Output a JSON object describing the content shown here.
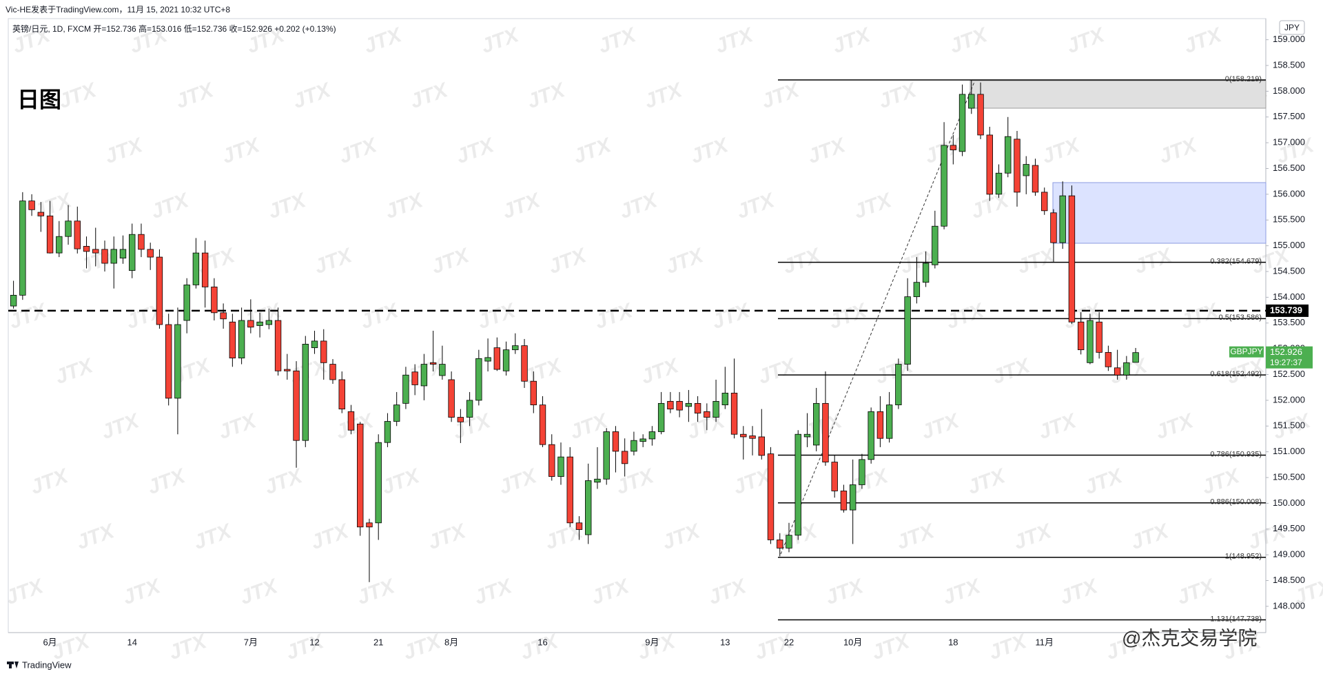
{
  "header": {
    "byline": "Vic-HE发表于TradingView.com，11月 15, 2021 10:32 UTC+8",
    "symbol_line": "英镑/日元, 1D, FXCM  开=152.736  高=153.016  低=152.736  收=152.926  +0.202 (+0.13%)"
  },
  "chart_data": {
    "type": "candlestick",
    "title": "日图",
    "categories": [
      null,
      null,
      null,
      null,
      "6月",
      null,
      null,
      null,
      null,
      null,
      null,
      null,
      null,
      "14",
      null,
      null,
      null,
      null,
      null,
      null,
      null,
      null,
      null,
      null,
      null,
      null,
      "7月",
      null,
      null,
      null,
      null,
      null,
      null,
      "12",
      null,
      null,
      null,
      null,
      null,
      null,
      "21",
      null,
      null,
      null,
      null,
      null,
      null,
      null,
      "8月",
      null,
      null,
      null,
      null,
      null,
      null,
      null,
      null,
      null,
      "16",
      null,
      null,
      null,
      null,
      null,
      null,
      null,
      null,
      null,
      null,
      null,
      "9月",
      null,
      null,
      null,
      null,
      null,
      null,
      null,
      "13",
      null,
      null,
      null,
      null,
      null,
      null,
      "22",
      null,
      null,
      null,
      null,
      null,
      null,
      "10月",
      null,
      null,
      null,
      null,
      null,
      null,
      null,
      null,
      null,
      null,
      "18",
      null,
      null,
      null,
      null,
      null,
      null,
      null,
      null,
      null,
      "11月",
      null,
      null,
      null,
      null,
      null,
      null,
      null,
      null,
      null,
      null
    ],
    "open": [
      153.83,
      154.04,
      155.87,
      155.65,
      155.58,
      154.86,
      155.18,
      155.48,
      154.99,
      154.93,
      154.93,
      154.66,
      154.76,
      154.52,
      155.22,
      154.93,
      154.78,
      153.47,
      152.04,
      153.55,
      154.24,
      154.86,
      154.2,
      153.7,
      153.52,
      152.82,
      153.55,
      153.45,
      153.47,
      153.55,
      152.6,
      152.57,
      151.22,
      153.02,
      153.15,
      152.7,
      152.4,
      151.78,
      151.54,
      149.62,
      149.62,
      151.18,
      151.59,
      151.94,
      152.55,
      152.28,
      152.73,
      152.48,
      152.4,
      151.67,
      151.67,
      152.0,
      152.76,
      153.02,
      152.57,
      152.98,
      153.06,
      152.37,
      151.91,
      151.14,
      150.52,
      150.9,
      149.62,
      149.39,
      150.41,
      150.47,
      151.39,
      151.01,
      151.01,
      151.2,
      151.25,
      151.39,
      151.98,
      151.98,
      151.88,
      151.94,
      151.78,
      151.67,
      151.91,
      152.14,
      151.34,
      151.31,
      151.29,
      150.96,
      149.29,
      149.13,
      149.38,
      151.29,
      151.13,
      151.94,
      150.8,
      150.24,
      149.87,
      150.36,
      150.85,
      151.78,
      151.26,
      151.91,
      152.7,
      154.01,
      154.29,
      154.63,
      155.38,
      156.95,
      156.83,
      157.67,
      157.94,
      157.15,
      156.0,
      156.41,
      157.07,
      156.36,
      156.56,
      156.04,
      155.64,
      155.06,
      155.97,
      153.52,
      152.73,
      153.52,
      152.93,
      152.63,
      152.49,
      152.736
    ],
    "high": [
      154.32,
      156.04,
      156.0,
      155.85,
      155.87,
      155.48,
      155.79,
      155.76,
      155.18,
      155.35,
      155.1,
      155.18,
      155.2,
      155.43,
      155.43,
      155.06,
      154.93,
      153.68,
      153.8,
      154.37,
      155.15,
      155.1,
      154.37,
      153.88,
      153.68,
      153.8,
      153.96,
      153.7,
      153.78,
      153.8,
      152.9,
      152.76,
      153.25,
      153.35,
      153.38,
      152.8,
      152.56,
      151.91,
      151.58,
      149.7,
      151.34,
      151.75,
      152.16,
      152.65,
      152.7,
      152.9,
      153.35,
      153.06,
      152.56,
      151.83,
      152.16,
      152.98,
      153.2,
      153.22,
      153.14,
      153.3,
      153.19,
      152.56,
      152.08,
      151.34,
      151.18,
      151.09,
      149.75,
      150.77,
      151.09,
      151.46,
      151.5,
      151.26,
      151.39,
      151.34,
      151.5,
      152.16,
      152.16,
      152.16,
      152.2,
      152.08,
      151.94,
      152.4,
      152.65,
      152.81,
      151.5,
      151.5,
      151.83,
      151.09,
      149.42,
      149.62,
      151.42,
      151.75,
      152.24,
      152.56,
      150.93,
      150.36,
      150.85,
      150.96,
      151.86,
      152.08,
      152.16,
      152.81,
      154.37,
      154.78,
      154.89,
      155.68,
      157.4,
      157.15,
      158.13,
      158.21,
      158.17,
      157.31,
      156.58,
      157.5,
      157.23,
      156.74,
      156.69,
      156.13,
      155.71,
      156.25,
      156.17,
      153.71,
      153.68,
      153.71,
      153.06,
      152.98,
      152.86,
      153.016
    ],
    "low": [
      153.78,
      153.95,
      155.58,
      155.27,
      154.85,
      154.78,
      155.02,
      154.85,
      154.56,
      154.6,
      154.5,
      154.17,
      154.65,
      154.37,
      154.78,
      154.53,
      153.39,
      151.9,
      151.34,
      153.3,
      154.17,
      153.8,
      153.55,
      153.39,
      152.65,
      152.7,
      153.3,
      153.22,
      153.38,
      152.48,
      152.4,
      150.69,
      151.09,
      152.9,
      152.4,
      152.32,
      151.75,
      151.34,
      149.37,
      148.47,
      149.29,
      151.09,
      151.5,
      151.83,
      152.1,
      152.0,
      152.56,
      152.4,
      151.58,
      151.17,
      151.5,
      151.9,
      152.56,
      152.57,
      152.48,
      152.9,
      152.24,
      151.75,
      151.09,
      150.44,
      150.36,
      149.54,
      149.29,
      149.21,
      150.28,
      150.36,
      150.6,
      150.52,
      150.93,
      151.09,
      151.12,
      151.34,
      151.75,
      151.67,
      151.58,
      151.58,
      151.42,
      151.58,
      151.83,
      151.26,
      150.85,
      150.93,
      150.85,
      149.21,
      148.97,
      149.05,
      149.29,
      151.09,
      151.01,
      150.73,
      150.11,
      149.82,
      149.21,
      150.28,
      150.77,
      151.09,
      151.18,
      151.83,
      152.57,
      153.88,
      154.2,
      154.56,
      155.32,
      156.58,
      156.74,
      157.56,
      157.07,
      155.87,
      155.93,
      156.33,
      155.76,
      156.0,
      155.97,
      155.6,
      154.69,
      154.94,
      153.48,
      152.89,
      152.7,
      152.81,
      152.57,
      152.4,
      152.4,
      152.736
    ],
    "close": [
      154.04,
      155.87,
      155.7,
      155.58,
      154.86,
      155.18,
      155.48,
      154.94,
      154.89,
      154.86,
      154.66,
      154.93,
      154.93,
      155.22,
      154.93,
      154.78,
      153.47,
      152.04,
      153.47,
      154.24,
      154.86,
      154.2,
      153.7,
      153.58,
      152.82,
      153.55,
      153.42,
      153.52,
      153.55,
      152.57,
      152.57,
      151.22,
      153.09,
      153.15,
      152.73,
      152.4,
      151.83,
      151.42,
      149.54,
      149.54,
      151.18,
      151.59,
      151.91,
      152.49,
      152.3,
      152.7,
      152.7,
      152.7,
      151.67,
      151.58,
      152.0,
      152.81,
      152.83,
      152.6,
      152.98,
      153.06,
      152.37,
      151.91,
      151.14,
      150.52,
      150.9,
      149.62,
      149.49,
      150.44,
      150.47,
      151.39,
      151.01,
      150.77,
      151.22,
      151.25,
      151.39,
      151.94,
      151.83,
      151.81,
      151.94,
      151.75,
      151.67,
      151.98,
      152.14,
      151.34,
      151.29,
      151.26,
      150.93,
      149.29,
      149.13,
      149.38,
      151.34,
      151.34,
      151.94,
      150.8,
      150.24,
      149.87,
      150.36,
      150.85,
      151.78,
      151.26,
      151.91,
      152.7,
      154.01,
      154.29,
      154.66,
      155.38,
      156.95,
      156.86,
      157.94,
      157.94,
      157.15,
      156.0,
      156.41,
      157.12,
      156.04,
      156.58,
      156.04,
      155.68,
      155.06,
      155.97,
      153.52,
      152.98,
      153.55,
      152.93,
      152.65,
      152.49,
      152.73,
      152.926
    ],
    "up_color": "#4caf50",
    "down_color": "#f44336",
    "ylim": [
      147.49,
      159.41
    ],
    "yticks": [
      {
        "value": 148,
        "label": "148.000"
      },
      {
        "value": 148.5,
        "label": "148.500"
      },
      {
        "value": 149,
        "label": "149.000"
      },
      {
        "value": 149.5,
        "label": "149.500"
      },
      {
        "value": 150,
        "label": "150.000"
      },
      {
        "value": 150.5,
        "label": "150.500"
      },
      {
        "value": 151,
        "label": "151.000"
      },
      {
        "value": 151.5,
        "label": "151.500"
      },
      {
        "value": 152,
        "label": "152.000"
      },
      {
        "value": 152.5,
        "label": "152.500"
      },
      {
        "value": 153,
        "label": "153.000"
      },
      {
        "value": 153.5,
        "label": "153.500"
      },
      {
        "value": 154,
        "label": "154.000"
      },
      {
        "value": 154.5,
        "label": "154.500"
      },
      {
        "value": 155,
        "label": "155.000"
      },
      {
        "value": 155.5,
        "label": "155.500"
      },
      {
        "value": 156,
        "label": "156.000"
      },
      {
        "value": 156.5,
        "label": "156.500"
      },
      {
        "value": 157,
        "label": "157.000"
      },
      {
        "value": 157.5,
        "label": "157.500"
      },
      {
        "value": 158,
        "label": "158.000"
      },
      {
        "value": 158.5,
        "label": "158.500"
      },
      {
        "value": 159,
        "label": "159.000"
      }
    ],
    "grid": false,
    "currency": "JPY",
    "dashed_level": 153.739,
    "last_price": 152.926,
    "countdown": "19:27:37",
    "symbol": "GBPJPY",
    "fib_levels": [
      {
        "value": 158.219,
        "label": "0(158.219)"
      },
      {
        "value": 154.679,
        "label": "0.382(154.679)"
      },
      {
        "value": 153.586,
        "label": "0.5(153.586)"
      },
      {
        "value": 152.492,
        "label": "0.618(152.492)"
      },
      {
        "value": 150.935,
        "label": "0.786(150.935)"
      },
      {
        "value": 150.008,
        "label": "0.886(150.008)"
      },
      {
        "value": 148.952,
        "label": "1(148.952)"
      },
      {
        "value": 147.738,
        "label": "1.131(147.738)"
      }
    ],
    "watermark": "JTX"
  },
  "footer": {
    "brand": "TradingView",
    "author_mark": "@杰克交易学院"
  }
}
